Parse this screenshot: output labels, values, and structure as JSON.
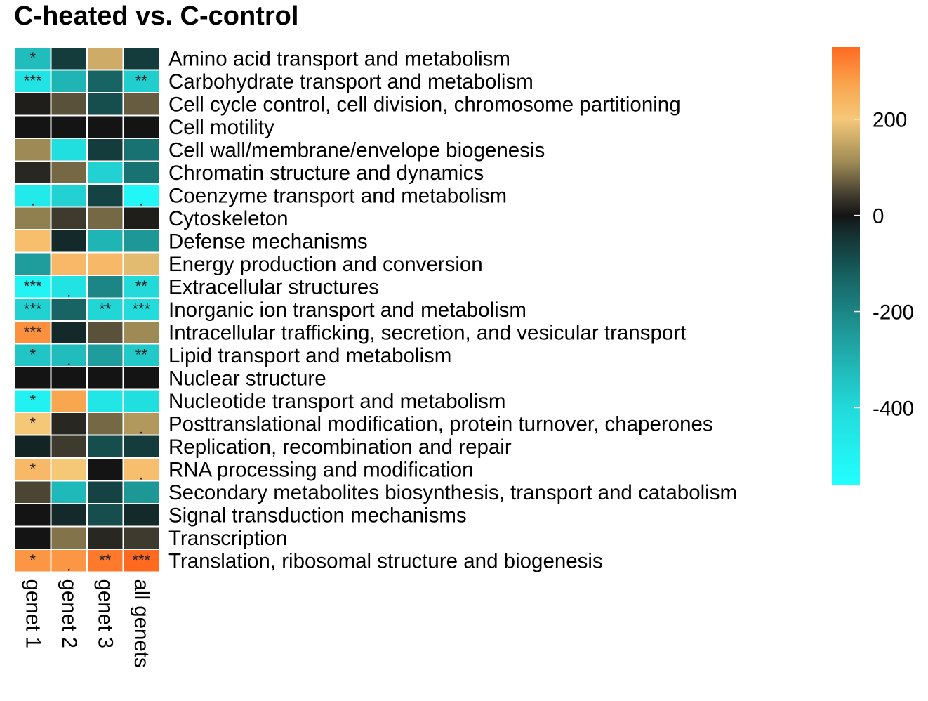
{
  "chart_data": {
    "type": "heatmap",
    "title": "C-heated vs. C-control",
    "columns": [
      "genet 1",
      "genet 2",
      "genet 3",
      "all genets"
    ],
    "rows": [
      "Amino acid transport and metabolism",
      "Carbohydrate transport and metabolism",
      "Cell cycle control, cell division, chromosome partitioning",
      "Cell motility",
      "Cell wall/membrane/envelope biogenesis",
      "Chromatin structure and dynamics",
      "Coenzyme transport and metabolism",
      "Cytoskeleton",
      "Defense mechanisms",
      "Energy production and conversion",
      "Extracellular structures",
      "Inorganic ion transport and metabolism",
      "Intracellular trafficking, secretion, and vesicular transport",
      "Lipid transport and metabolism",
      "Nuclear structure",
      "Nucleotide transport and metabolism",
      "Posttranslational modification, protein turnover, chaperones",
      "Replication, recombination and repair",
      "RNA processing and modification",
      "Secondary metabolites biosynthesis, transport and catabolism",
      "Signal transduction mechanisms",
      "Transcription",
      "Translation, ribosomal structure and biogenesis"
    ],
    "values": [
      [
        -330,
        -60,
        160,
        -60
      ],
      [
        -440,
        -310,
        -130,
        -370
      ],
      [
        10,
        60,
        -90,
        70
      ],
      [
        0,
        0,
        0,
        0
      ],
      [
        110,
        -420,
        -60,
        -160
      ],
      [
        20,
        80,
        -380,
        -160
      ],
      [
        -470,
        -380,
        -70,
        -520
      ],
      [
        100,
        40,
        80,
        10
      ],
      [
        220,
        -30,
        -310,
        -240
      ],
      [
        -250,
        230,
        230,
        180
      ],
      [
        -510,
        -440,
        -200,
        -400
      ],
      [
        -380,
        -130,
        -390,
        -410
      ],
      [
        300,
        -30,
        60,
        110
      ],
      [
        -350,
        -330,
        -250,
        -360
      ],
      [
        0,
        0,
        0,
        0
      ],
      [
        -500,
        270,
        -450,
        -420
      ],
      [
        200,
        20,
        80,
        130
      ],
      [
        -20,
        40,
        -90,
        -60
      ],
      [
        230,
        200,
        0,
        220
      ],
      [
        50,
        -320,
        -70,
        -240
      ],
      [
        0,
        -30,
        -90,
        -30
      ],
      [
        0,
        90,
        20,
        40
      ],
      [
        290,
        290,
        330,
        360
      ]
    ],
    "significance": [
      [
        "*",
        "",
        "",
        ""
      ],
      [
        "***",
        "",
        "",
        "**"
      ],
      [
        "",
        "",
        "",
        ""
      ],
      [
        "",
        "",
        "",
        ""
      ],
      [
        "",
        "",
        "",
        ""
      ],
      [
        "",
        "",
        "",
        ""
      ],
      [
        ".",
        "",
        "",
        "."
      ],
      [
        "",
        "",
        "",
        ""
      ],
      [
        "",
        "",
        "",
        ""
      ],
      [
        "",
        "",
        "",
        ""
      ],
      [
        "***",
        ".",
        "",
        "**"
      ],
      [
        "***",
        "",
        "**",
        "***"
      ],
      [
        "***",
        "",
        "",
        ""
      ],
      [
        "*",
        ".",
        "",
        "**"
      ],
      [
        "",
        "",
        "",
        ""
      ],
      [
        "*",
        "",
        "",
        ""
      ],
      [
        "*",
        "",
        "",
        "."
      ],
      [
        "",
        "",
        "",
        ""
      ],
      [
        "*",
        "",
        "",
        "."
      ],
      [
        "",
        "",
        "",
        ""
      ],
      [
        "",
        "",
        "",
        ""
      ],
      [
        "",
        "",
        "",
        ""
      ],
      [
        "*",
        ".",
        "**",
        "***"
      ]
    ],
    "colorbar": {
      "range": [
        -560,
        350
      ],
      "ticks": [
        200,
        0,
        -200,
        -400
      ],
      "tick_labels": [
        "200",
        "0",
        "-200",
        "-400"
      ],
      "stops": [
        {
          "value": -560,
          "color": "#22ffff"
        },
        {
          "value": -400,
          "color": "#22dada"
        },
        {
          "value": -250,
          "color": "#1f9c9c"
        },
        {
          "value": -120,
          "color": "#175f5f"
        },
        {
          "value": -30,
          "color": "#142a2a"
        },
        {
          "value": 0,
          "color": "#141414"
        },
        {
          "value": 40,
          "color": "#3e3a2e"
        },
        {
          "value": 110,
          "color": "#9e8a55"
        },
        {
          "value": 200,
          "color": "#f5c878"
        },
        {
          "value": 270,
          "color": "#f9a650"
        },
        {
          "value": 350,
          "color": "#ff6a20"
        }
      ]
    },
    "grid": false,
    "legend_position": "right"
  }
}
